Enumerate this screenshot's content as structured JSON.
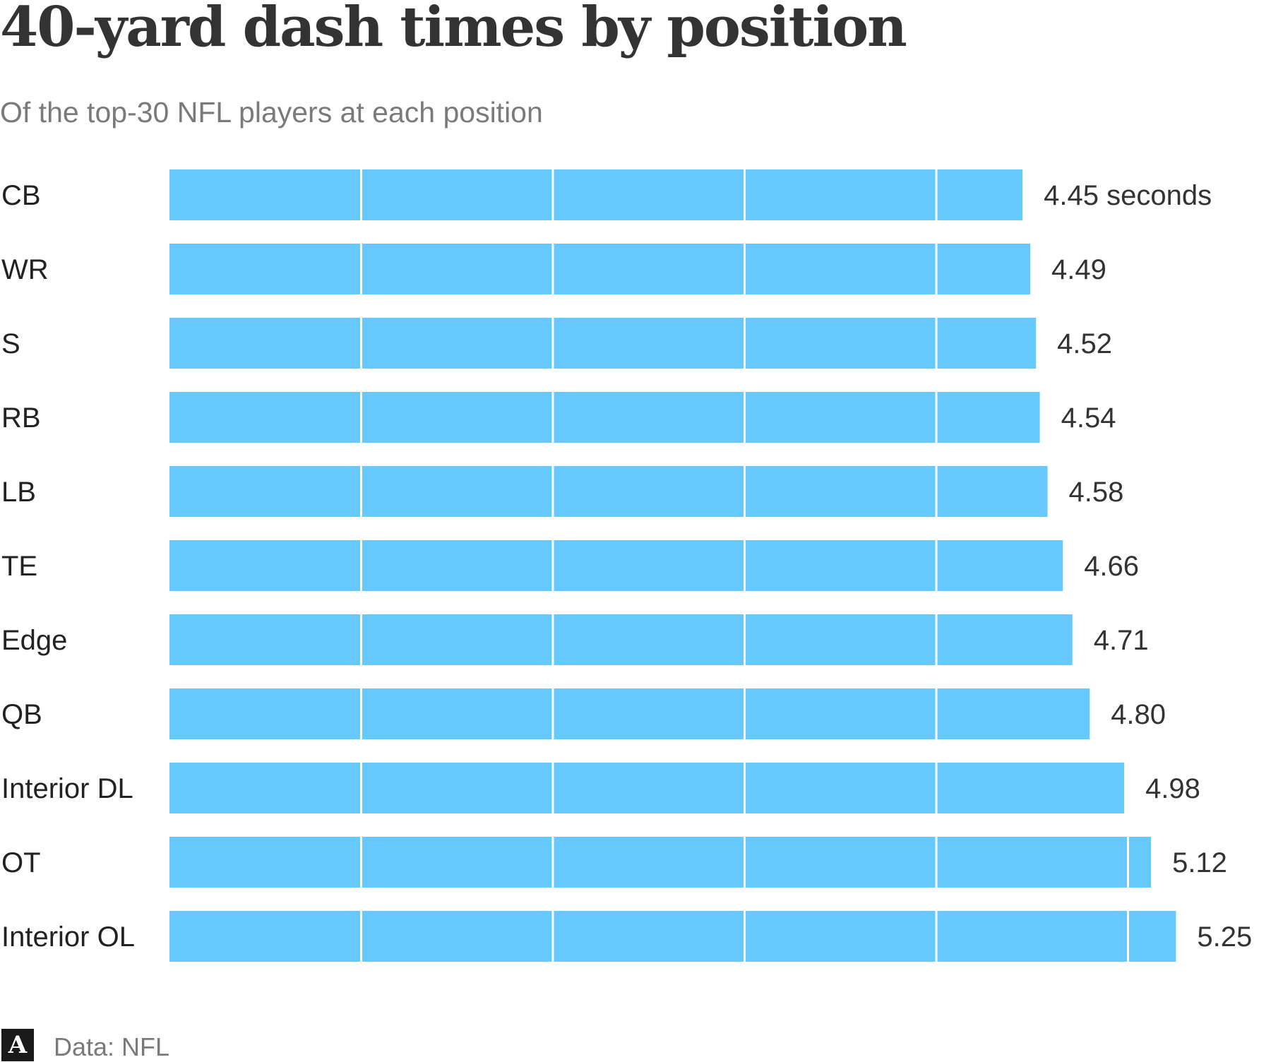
{
  "chart_data": {
    "type": "bar",
    "orientation": "horizontal",
    "title": "40-yard dash times by position",
    "subtitle": "Of the top-30 NFL players at each position",
    "categories": [
      "CB",
      "WR",
      "S",
      "RB",
      "LB",
      "TE",
      "Edge",
      "QB",
      "Interior DL",
      "OT",
      "Interior OL"
    ],
    "values": [
      4.45,
      4.49,
      4.52,
      4.54,
      4.58,
      4.66,
      4.71,
      4.8,
      4.98,
      5.12,
      5.25
    ],
    "value_labels": [
      "4.45 seconds",
      "4.49",
      "4.52",
      "4.54",
      "4.58",
      "4.66",
      "4.71",
      "4.80",
      "4.98",
      "5.12",
      "5.25"
    ],
    "xlim": [
      0,
      5.25
    ],
    "segment_divisions_every": 1,
    "bar_color": "#66c8fc",
    "divider_color": "#ffffff",
    "grid": false,
    "legend": "none"
  },
  "footer": {
    "logo_icon": "athletic-logo-icon",
    "logo_glyph": "A",
    "source": "Data: NFL"
  }
}
